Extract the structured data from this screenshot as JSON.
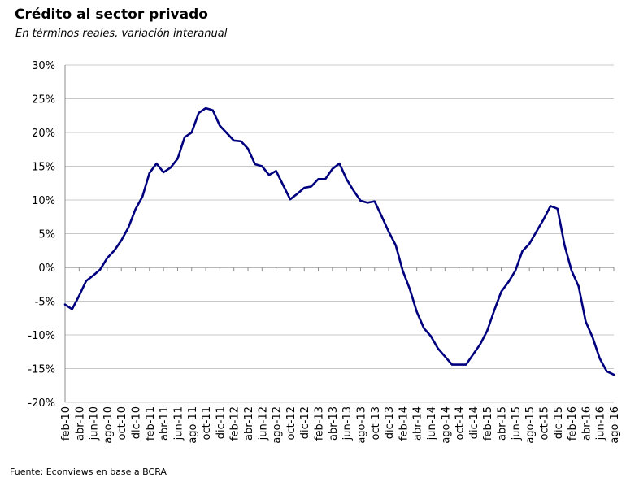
{
  "title": "Crédito al sector privado",
  "subtitle": "En términos reales, variación interanual",
  "source": "Fuente: Econviews en base a BCRA",
  "colors": {
    "line": "#00007f",
    "grid": "#c8c8c8",
    "zero_axis": "#8c8c8c"
  },
  "chart_data": {
    "type": "line",
    "title": "Crédito al sector privado",
    "subtitle": "En términos reales, variación interanual",
    "ylabel": "",
    "xlabel": "",
    "ylim": [
      -20,
      30
    ],
    "y_ticks": [
      "30%",
      "25%",
      "20%",
      "15%",
      "10%",
      "5%",
      "0%",
      "-5%",
      "-10%",
      "-15%",
      "-20%"
    ],
    "y_tick_values": [
      30,
      25,
      20,
      15,
      10,
      5,
      0,
      -5,
      -10,
      -15,
      -20
    ],
    "grid": "horizontal",
    "x_tick_labels": [
      "feb-10",
      "abr-10",
      "jun-10",
      "ago-10",
      "oct-10",
      "dic-10",
      "feb-11",
      "abr-11",
      "jun-11",
      "ago-11",
      "oct-11",
      "dic-11",
      "feb-12",
      "abr-12",
      "jun-12",
      "ago-12",
      "oct-12",
      "dic-12",
      "feb-13",
      "abr-13",
      "jun-13",
      "ago-13",
      "oct-13",
      "dic-13",
      "feb-14",
      "abr-14",
      "jun-14",
      "ago-14",
      "oct-14",
      "dic-14",
      "feb-15",
      "abr-15",
      "jun-15",
      "ago-15",
      "oct-15",
      "dic-15",
      "feb-16",
      "abr-16",
      "jun-16",
      "ago-16"
    ],
    "series": [
      {
        "values": [
          -5.5,
          -6.2,
          -4.2,
          -2.0,
          -1.2,
          -0.3,
          1.4,
          2.5,
          4.0,
          5.9,
          8.6,
          10.5,
          14.0,
          15.4,
          14.1,
          14.8,
          16.1,
          19.3,
          20.0,
          22.9,
          23.6,
          23.3,
          21.0,
          19.9,
          18.8,
          18.7,
          17.6,
          15.3,
          15.0,
          13.7,
          14.3,
          12.2,
          10.1,
          10.9,
          11.8,
          12.0,
          13.1,
          13.1,
          14.6,
          15.4,
          13.1,
          11.4,
          9.9,
          9.6,
          9.8,
          7.6,
          5.3,
          3.3,
          -0.5,
          -3.2,
          -6.6,
          -9.0,
          -10.2,
          -12.0,
          -13.2,
          -14.4,
          -14.4,
          -14.4,
          -12.9,
          -11.4,
          -9.4,
          -6.4,
          -3.6,
          -2.2,
          -0.5,
          2.4,
          3.5,
          5.3,
          7.1,
          9.1,
          8.7,
          3.3,
          -0.5,
          -2.8,
          -8.0,
          -10.4,
          -13.5,
          -15.4,
          -15.9
        ]
      }
    ]
  }
}
